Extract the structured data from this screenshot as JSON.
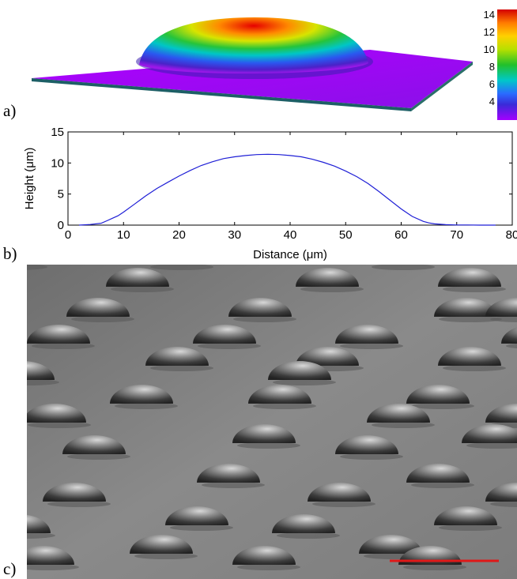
{
  "panels": {
    "a": {
      "label": "a)"
    },
    "b": {
      "label": "b)"
    },
    "c": {
      "label": "c)"
    }
  },
  "colorbar": {
    "ticks": [
      "14",
      "12",
      "10",
      "8",
      "6",
      "4"
    ]
  },
  "chart_data": {
    "type": "line",
    "xlabel": "Distance (μm)",
    "ylabel": "Height (μm)",
    "xlim": [
      0,
      80
    ],
    "ylim": [
      0,
      15
    ],
    "xticks": [
      0,
      10,
      20,
      30,
      40,
      50,
      60,
      70,
      80
    ],
    "yticks": [
      0,
      5,
      10,
      15
    ],
    "grid": false,
    "series": [
      {
        "color": "#1f1fd6",
        "x": [
          2,
          4,
          6,
          7,
          8,
          9,
          10,
          12,
          14,
          16,
          18,
          20,
          22,
          24,
          26,
          28,
          30,
          32,
          34,
          36,
          38,
          40,
          42,
          44,
          46,
          48,
          50,
          52,
          54,
          56,
          58,
          60,
          62,
          64,
          65,
          66,
          68,
          70,
          72,
          74,
          76,
          77
        ],
        "y": [
          0.0,
          0.1,
          0.3,
          0.7,
          1.1,
          1.5,
          2.1,
          3.4,
          4.7,
          5.9,
          6.9,
          7.9,
          8.8,
          9.6,
          10.2,
          10.7,
          11.0,
          11.2,
          11.35,
          11.4,
          11.35,
          11.2,
          11.0,
          10.6,
          10.1,
          9.5,
          8.7,
          7.8,
          6.7,
          5.4,
          4.0,
          2.6,
          1.4,
          0.6,
          0.35,
          0.2,
          0.08,
          0.03,
          0.02,
          0.0,
          0.0,
          0.0
        ]
      }
    ]
  },
  "scalebar": {
    "color": "#e01818"
  }
}
